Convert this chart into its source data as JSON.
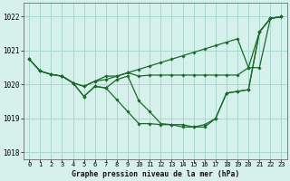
{
  "title": "Graphe pression niveau de la mer (hPa)",
  "background_color": "#d6f0ec",
  "grid_color": "#a8d8d0",
  "line_color": "#1a6b2a",
  "xlim": [
    -0.5,
    23.5
  ],
  "ylim": [
    1017.8,
    1022.4
  ],
  "yticks": [
    1018,
    1019,
    1020,
    1021,
    1022
  ],
  "xticks": [
    0,
    1,
    2,
    3,
    4,
    5,
    6,
    7,
    8,
    9,
    10,
    11,
    12,
    13,
    14,
    15,
    16,
    17,
    18,
    19,
    20,
    21,
    22,
    23
  ],
  "series1_x": [
    0,
    1,
    2,
    3,
    4,
    5,
    6,
    7,
    8,
    9,
    10,
    11,
    12,
    13,
    14,
    15,
    16,
    17,
    18,
    19,
    20,
    21,
    22,
    23
  ],
  "series1_y": [
    1020.75,
    1020.4,
    1020.3,
    1020.25,
    1020.05,
    1019.95,
    1020.1,
    1020.15,
    1020.25,
    1020.35,
    1020.45,
    1020.55,
    1020.65,
    1020.75,
    1020.85,
    1020.95,
    1021.05,
    1021.15,
    1021.25,
    1021.35,
    1020.5,
    1021.55,
    1021.95,
    1022.0
  ],
  "series2_x": [
    0,
    1,
    2,
    3,
    4,
    5,
    6,
    7,
    8,
    9,
    10,
    11,
    12,
    13,
    14,
    15,
    16,
    17,
    18,
    19,
    20,
    21,
    22,
    23
  ],
  "series2_y": [
    1020.75,
    1020.4,
    1020.3,
    1020.25,
    1020.05,
    1019.65,
    1019.95,
    1019.9,
    1019.55,
    1019.2,
    1018.85,
    1018.85,
    1018.82,
    1018.82,
    1018.75,
    1018.75,
    1018.82,
    1019.0,
    1019.75,
    1019.8,
    1019.85,
    1021.55,
    1021.95,
    1022.0
  ],
  "series3_x": [
    0,
    1,
    2,
    3,
    4,
    5,
    6,
    7,
    8,
    9,
    10,
    11,
    12,
    13,
    14,
    15,
    16,
    17,
    18,
    19,
    20,
    21,
    22,
    23
  ],
  "series3_y": [
    1020.75,
    1020.4,
    1020.3,
    1020.25,
    1020.05,
    1019.95,
    1020.1,
    1020.25,
    1020.25,
    1020.35,
    1020.25,
    1020.28,
    1020.28,
    1020.28,
    1020.28,
    1020.28,
    1020.28,
    1020.28,
    1020.28,
    1020.28,
    1020.5,
    1020.5,
    1021.95,
    1022.0
  ],
  "series4_x": [
    3,
    4,
    5,
    6,
    7,
    8,
    9,
    10,
    11,
    12,
    13,
    14,
    15,
    16,
    17,
    18,
    19,
    20,
    21,
    22,
    23
  ],
  "series4_y": [
    1020.25,
    1020.05,
    1019.65,
    1019.95,
    1019.9,
    1020.15,
    1020.25,
    1019.52,
    1019.2,
    1018.85,
    1018.82,
    1018.82,
    1018.75,
    1018.75,
    1019.0,
    1019.75,
    1019.8,
    1019.85,
    1021.55,
    1021.95,
    1022.0
  ]
}
